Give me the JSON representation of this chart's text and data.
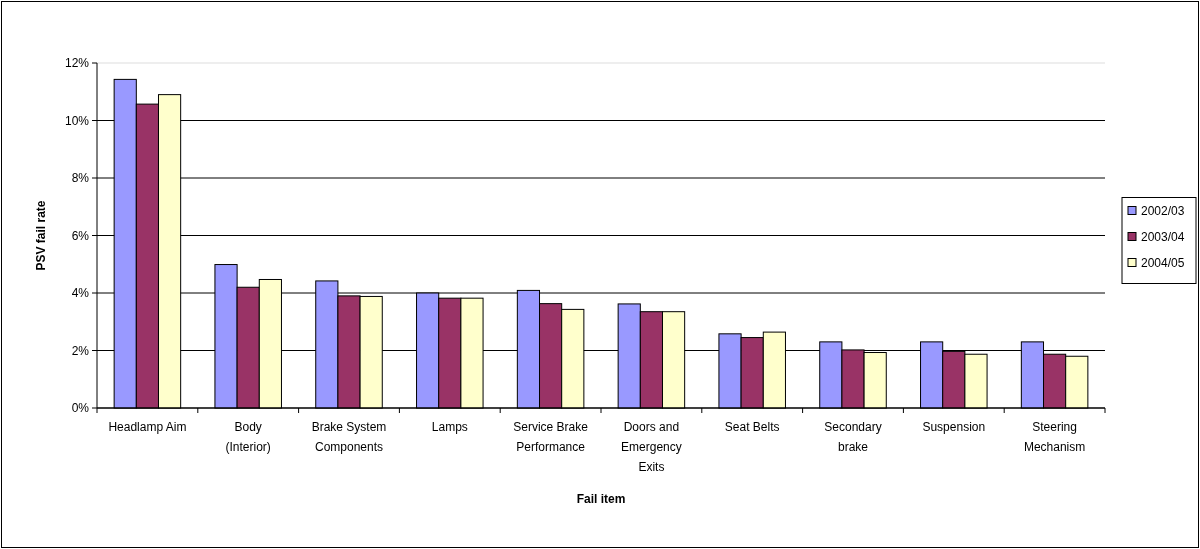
{
  "chart_data": {
    "type": "bar",
    "xlabel": "Fail item",
    "ylabel": "PSV fail rate",
    "categories": [
      "Headlamp Aim",
      "Body (Interior)",
      "Brake System Components",
      "Lamps",
      "Service Brake Performance",
      "Doors and Emergency Exits",
      "Seat Belts",
      "Secondary brake",
      "Suspension",
      "Steering Mechanism"
    ],
    "series": [
      {
        "name": "2002/03",
        "color": "#9999ff",
        "values": [
          11.43,
          4.99,
          4.42,
          4.0,
          4.09,
          3.62,
          2.58,
          2.3,
          2.3,
          2.3
        ]
      },
      {
        "name": "2003/04",
        "color": "#993366",
        "values": [
          10.57,
          4.2,
          3.9,
          3.82,
          3.63,
          3.35,
          2.45,
          2.02,
          1.97,
          1.87
        ]
      },
      {
        "name": "2004/05",
        "color": "#ffffcc",
        "values": [
          10.9,
          4.47,
          3.88,
          3.82,
          3.43,
          3.35,
          2.64,
          1.93,
          1.87,
          1.8
        ]
      }
    ],
    "ylim": [
      0,
      12
    ],
    "yticks": [
      {
        "value": 0,
        "label": "0%"
      },
      {
        "value": 2,
        "label": "2%"
      },
      {
        "value": 4,
        "label": "4%"
      },
      {
        "value": 6,
        "label": "6%"
      },
      {
        "value": 8,
        "label": "8%"
      },
      {
        "value": 10,
        "label": "10%"
      },
      {
        "value": 12,
        "label": "12%"
      }
    ],
    "grid": "y",
    "legend": "right"
  }
}
